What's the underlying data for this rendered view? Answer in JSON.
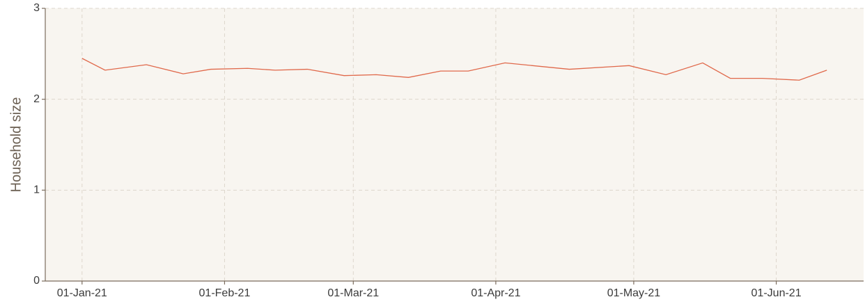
{
  "chart_data": {
    "type": "line",
    "y_label": "Household size",
    "x": [
      "2021-01-01",
      "2021-01-06",
      "2021-01-15",
      "2021-01-23",
      "2021-01-29",
      "2021-02-06",
      "2021-02-12",
      "2021-02-19",
      "2021-02-27",
      "2021-03-06",
      "2021-03-13",
      "2021-03-20",
      "2021-03-26",
      "2021-04-03",
      "2021-04-17",
      "2021-04-30",
      "2021-05-08",
      "2021-05-16",
      "2021-05-22",
      "2021-05-29",
      "2021-06-06",
      "2021-06-12"
    ],
    "series": [
      {
        "color": "#e0684a",
        "values": [
          2.45,
          2.32,
          2.38,
          2.28,
          2.33,
          2.34,
          2.32,
          2.33,
          2.26,
          2.27,
          2.24,
          2.31,
          2.31,
          2.4,
          2.33,
          2.37,
          2.27,
          2.4,
          2.23,
          2.23,
          2.21,
          2.32
        ]
      }
    ],
    "xlim": [
      "2020-12-24",
      "2021-06-20"
    ],
    "xticks": [
      {
        "value": "2021-01-01",
        "label": "01-Jan-21"
      },
      {
        "value": "2021-02-01",
        "label": "01-Feb-21"
      },
      {
        "value": "2021-03-01",
        "label": "01-Mar-21"
      },
      {
        "value": "2021-04-01",
        "label": "01-Apr-21"
      },
      {
        "value": "2021-05-01",
        "label": "01-May-21"
      },
      {
        "value": "2021-06-01",
        "label": "01-Jun-21"
      }
    ],
    "ylim": [
      0,
      3
    ],
    "yticks": [
      0,
      1,
      2,
      3
    ],
    "grid": true
  }
}
